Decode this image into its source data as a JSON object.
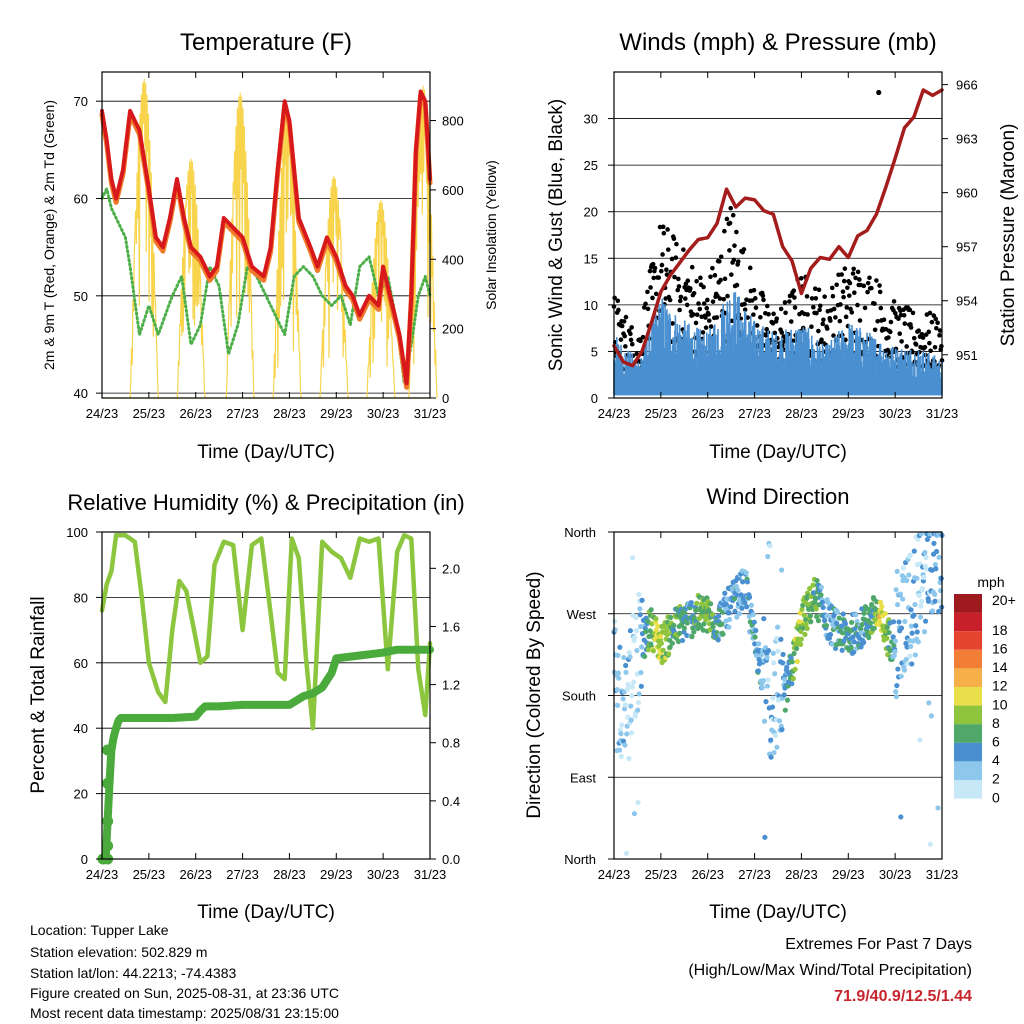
{
  "x_ticks": [
    "24/23",
    "25/23",
    "26/23",
    "27/23",
    "28/23",
    "29/23",
    "30/23",
    "31/23"
  ],
  "xlabel": "Time (Day/UTC)",
  "colors": {
    "temp_2m": "#d7191c",
    "temp_9m": "#f07a2a",
    "dewpoint": "#4daf4a",
    "solar": "#f7d44c",
    "wind": "#4a90d0",
    "gust": "#000000",
    "pressure": "#a41c1c",
    "rh": "#8cc63f",
    "precip": "#4aaa3c",
    "extremes": "#c8262e"
  },
  "chart_data": [
    {
      "id": "temperature",
      "type": "line",
      "title": "Temperature (F)",
      "xlabel": "Time (Day/UTC)",
      "ylabel": "2m & 9m T (Red, Orange) & 2m Td (Green)",
      "ylabel_right": "Solar Insolation (Yellow)",
      "xlim": [
        0,
        7
      ],
      "ylim": [
        39.5,
        73
      ],
      "ylim_right": [
        0,
        940
      ],
      "yticks": [
        40,
        50,
        60,
        70
      ],
      "yticks_right": [
        0,
        200,
        400,
        600,
        800
      ],
      "grid": "horizontal",
      "series": [
        {
          "key": "t2m",
          "axis": "left",
          "x": [
            0,
            0.1,
            0.2,
            0.3,
            0.45,
            0.6,
            0.8,
            1.0,
            1.15,
            1.3,
            1.45,
            1.6,
            1.75,
            1.9,
            2.1,
            2.3,
            2.45,
            2.6,
            2.8,
            3.0,
            3.2,
            3.45,
            3.6,
            3.75,
            3.9,
            4.0,
            4.2,
            4.45,
            4.6,
            4.8,
            5.0,
            5.2,
            5.35,
            5.5,
            5.7,
            5.9,
            6.0,
            6.2,
            6.35,
            6.5,
            6.6,
            6.7,
            6.8,
            6.9,
            7.0
          ],
          "y": [
            69,
            66,
            62,
            60,
            63,
            69,
            67,
            61,
            56,
            55,
            58,
            62,
            58,
            55,
            54,
            52,
            53,
            58,
            57,
            56,
            53,
            52,
            55,
            63,
            70,
            68,
            58,
            55,
            53,
            56,
            54,
            51,
            50,
            48,
            50,
            49,
            53,
            49,
            46,
            41,
            50,
            65,
            71,
            70,
            62
          ]
        },
        {
          "key": "dewpoint",
          "axis": "left",
          "x": [
            0,
            0.1,
            0.2,
            0.3,
            0.5,
            0.6,
            0.8,
            1.0,
            1.2,
            1.5,
            1.7,
            1.9,
            2.1,
            2.3,
            2.5,
            2.7,
            2.9,
            3.1,
            3.3,
            3.5,
            3.7,
            3.9,
            4.1,
            4.3,
            4.5,
            4.7,
            4.9,
            5.1,
            5.3,
            5.5,
            5.7,
            5.9,
            6.1,
            6.3,
            6.45,
            6.6,
            6.75,
            6.9,
            7.0
          ],
          "y": [
            60,
            61,
            59,
            58,
            56,
            53,
            46,
            49,
            46,
            50,
            52,
            45,
            47,
            53,
            51,
            44,
            47,
            53,
            52,
            50,
            48,
            46,
            52,
            53,
            52,
            50,
            49,
            50,
            47,
            53,
            54,
            50,
            52,
            47,
            41,
            45,
            50,
            52,
            50
          ]
        },
        {
          "key": "solar",
          "axis": "right",
          "kind": "diurnal",
          "peaks": [
            {
              "center": 0.9,
              "value": 920
            },
            {
              "center": 1.9,
              "value": 690
            },
            {
              "center": 2.95,
              "value": 880
            },
            {
              "center": 3.95,
              "value": 820
            },
            {
              "center": 4.95,
              "value": 640
            },
            {
              "center": 5.95,
              "value": 570
            },
            {
              "center": 6.85,
              "value": 900
            }
          ]
        }
      ]
    },
    {
      "id": "winds",
      "type": "scatter",
      "title": "Winds (mph) & Pressure (mb)",
      "xlabel": "Time (Day/UTC)",
      "ylabel": "Sonic Wind & Gust (Blue, Black)",
      "ylabel_right": "Station Pressure (Maroon)",
      "xlim": [
        0,
        7
      ],
      "ylim": [
        0,
        35
      ],
      "ylim_right": [
        948.6,
        966.7
      ],
      "yticks": [
        0,
        5,
        10,
        15,
        20,
        25,
        30
      ],
      "yticks_right": [
        951,
        954,
        957,
        960,
        963,
        966
      ],
      "grid": "horizontal",
      "wind_envelope_x": [
        0,
        0.5,
        1.0,
        1.5,
        2.0,
        2.5,
        3.0,
        3.5,
        4.0,
        4.5,
        5.0,
        5.5,
        6.0,
        6.5,
        7.0
      ],
      "wind_envelope_y": [
        5,
        3,
        8,
        6,
        5,
        9,
        6,
        5,
        6,
        4,
        6,
        5,
        4,
        4,
        3
      ],
      "gust_envelope_y": [
        10,
        6,
        17,
        14,
        11,
        19,
        11,
        8,
        12,
        10,
        13,
        12,
        9,
        8,
        8
      ],
      "gust_max": {
        "x": 5.65,
        "y": 32.8
      },
      "pressure": {
        "x": [
          0,
          0.2,
          0.4,
          0.6,
          0.8,
          1.0,
          1.2,
          1.4,
          1.6,
          1.8,
          2.0,
          2.2,
          2.4,
          2.6,
          2.8,
          3.0,
          3.2,
          3.4,
          3.6,
          3.8,
          4.0,
          4.2,
          4.4,
          4.6,
          4.8,
          5.0,
          5.2,
          5.4,
          5.6,
          5.8,
          6.0,
          6.2,
          6.4,
          6.6,
          6.8,
          7.0
        ],
        "y": [
          951.5,
          950.6,
          950.4,
          951.2,
          952.8,
          954.5,
          955.4,
          956.1,
          956.8,
          957.4,
          957.5,
          958.3,
          960.2,
          959.2,
          959.7,
          959.6,
          959.0,
          958.8,
          957.0,
          956.2,
          954.4,
          955.8,
          956.4,
          956.3,
          957.0,
          956.4,
          957.6,
          957.9,
          958.8,
          960.3,
          961.9,
          963.6,
          964.2,
          965.7,
          965.4,
          965.7
        ]
      }
    },
    {
      "id": "humidity",
      "type": "line",
      "title": "Relative Humidity (%) & Precipitation (in)",
      "xlabel": "Time (Day/UTC)",
      "ylabel": "Percent & Total Rainfall",
      "xlim": [
        0,
        7
      ],
      "ylim": [
        0,
        100
      ],
      "ylim_right": [
        0,
        2.25
      ],
      "yticks": [
        0,
        20,
        40,
        60,
        80,
        100
      ],
      "yticks_right": [
        0.0,
        0.4,
        0.8,
        1.2,
        1.6,
        2.0
      ],
      "yticks_right_labels": [
        "0.0",
        "0.4",
        "0.8",
        "1.2",
        "1.6",
        "2.0"
      ],
      "grid": "horizontal",
      "series": [
        {
          "key": "rh",
          "axis": "left",
          "x": [
            0,
            0.1,
            0.2,
            0.3,
            0.5,
            0.7,
            0.85,
            1.0,
            1.2,
            1.35,
            1.5,
            1.65,
            1.8,
            1.95,
            2.1,
            2.25,
            2.4,
            2.6,
            2.8,
            3.0,
            3.2,
            3.4,
            3.6,
            3.75,
            3.9,
            4.05,
            4.2,
            4.35,
            4.5,
            4.7,
            4.9,
            5.1,
            5.3,
            5.5,
            5.7,
            5.9,
            6.1,
            6.3,
            6.45,
            6.6,
            6.75,
            6.9,
            7.0
          ],
          "y": [
            76,
            84,
            88,
            99,
            99,
            97,
            80,
            60,
            51,
            48,
            70,
            85,
            82,
            71,
            60,
            62,
            90,
            97,
            96,
            70,
            96,
            98,
            75,
            57,
            55,
            98,
            92,
            62,
            40,
            97,
            94,
            92,
            86,
            98,
            97,
            98,
            58,
            94,
            99,
            98,
            58,
            44,
            66
          ]
        },
        {
          "key": "precip",
          "axis": "right",
          "x": [
            0,
            0.08,
            0.12,
            0.16,
            0.2,
            0.25,
            0.3,
            0.35,
            0.4,
            0.5,
            1.0,
            1.5,
            2.0,
            2.1,
            2.2,
            2.5,
            3.0,
            3.5,
            4.0,
            4.3,
            4.5,
            4.7,
            4.9,
            5.0,
            5.5,
            6.0,
            6.3,
            7.0
          ],
          "y": [
            0.0,
            0.0,
            0.26,
            0.52,
            0.75,
            0.84,
            0.9,
            0.95,
            0.97,
            0.97,
            0.97,
            0.97,
            0.98,
            1.02,
            1.05,
            1.05,
            1.06,
            1.06,
            1.06,
            1.12,
            1.14,
            1.18,
            1.28,
            1.38,
            1.4,
            1.42,
            1.44,
            1.44
          ]
        }
      ]
    },
    {
      "id": "direction",
      "type": "scatter",
      "title": "Wind Direction",
      "xlabel": "Time (Day/UTC)",
      "ylabel": "Direction (Colored By Speed)",
      "xlim": [
        0,
        7
      ],
      "ylim": [
        0,
        360
      ],
      "ytick_values": [
        0,
        90,
        180,
        270,
        360
      ],
      "yticks": [
        "North",
        "East",
        "South",
        "West",
        "North"
      ],
      "grid": "horizontal",
      "direction_track": {
        "x": [
          0,
          0.2,
          0.4,
          0.6,
          0.8,
          1.0,
          1.3,
          1.6,
          1.9,
          2.2,
          2.5,
          2.8,
          3.0,
          3.2,
          3.4,
          3.6,
          3.8,
          4.0,
          4.3,
          4.6,
          4.8,
          5.0,
          5.3,
          5.6,
          5.9,
          6.1,
          6.3,
          6.5,
          6.7,
          6.9,
          7.0
        ],
        "y": [
          180,
          150,
          200,
          240,
          255,
          235,
          255,
          265,
          270,
          260,
          280,
          300,
          240,
          200,
          175,
          175,
          210,
          260,
          290,
          260,
          250,
          245,
          255,
          270,
          240,
          250,
          270,
          300,
          320,
          330,
          340
        ]
      },
      "speed_track": {
        "x": [
          0,
          0.5,
          0.9,
          1.2,
          1.6,
          1.9,
          2.3,
          2.7,
          3.0,
          3.5,
          3.9,
          4.3,
          4.6,
          5.0,
          5.4,
          5.7,
          6.0,
          6.5,
          7.0
        ],
        "y": [
          3,
          2,
          10,
          8,
          5,
          9,
          5,
          4,
          5,
          2,
          9,
          7,
          4,
          6,
          5,
          11,
          4,
          3,
          4
        ]
      },
      "colorbar": {
        "title": "mph",
        "labels": [
          "0",
          "2",
          "4",
          "6",
          "8",
          "10",
          "12",
          "14",
          "16",
          "18",
          "20+"
        ],
        "colors": [
          "#c6e8f7",
          "#8ec7ec",
          "#4a90d0",
          "#4fa86a",
          "#8fc43d",
          "#e8df4a",
          "#f6b04a",
          "#f27d35",
          "#e4432e",
          "#c8202a",
          "#9e1a1e"
        ]
      }
    }
  ],
  "footer": {
    "location": "Location: Tupper Lake",
    "elevation": "Station elevation: 502.829 m",
    "latlon": "Station lat/lon: 44.2213; -74.4383",
    "created": "Figure created on Sun, 2025-08-31, at 23:36 UTC",
    "recent": "Most recent data timestamp: 2025/08/31 23:15:00"
  },
  "extremes": {
    "title": "Extremes For Past 7 Days",
    "subtitle": "(High/Low/Max Wind/Total Precipitation)",
    "values": "71.9/40.9/12.5/1.44"
  }
}
